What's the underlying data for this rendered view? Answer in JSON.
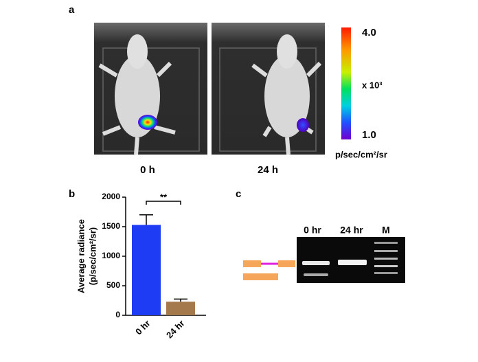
{
  "panel_a": {
    "label": "a",
    "images": [
      "0 h",
      "24 h"
    ],
    "colorbar": {
      "max": "4.0",
      "scale": "x 10³",
      "min": "1.0",
      "unit": "p/sec/cm²/sr"
    }
  },
  "chart_data": {
    "type": "bar",
    "label": "b",
    "ylabel": [
      "Average radiance",
      "(p/sec/cm²/sr)"
    ],
    "categories": [
      "0 hr",
      "24 hr"
    ],
    "values": [
      1530,
      230
    ],
    "errors": [
      170,
      45
    ],
    "colors": [
      "#1f3cf5",
      "#a47a4c"
    ],
    "ylim": [
      0,
      2000
    ],
    "yticks": [
      0,
      500,
      1000,
      1500,
      2000
    ],
    "annotation": "**"
  },
  "panel_c": {
    "label": "c",
    "lanes": [
      "0 hr",
      "24 hr",
      "M"
    ]
  }
}
